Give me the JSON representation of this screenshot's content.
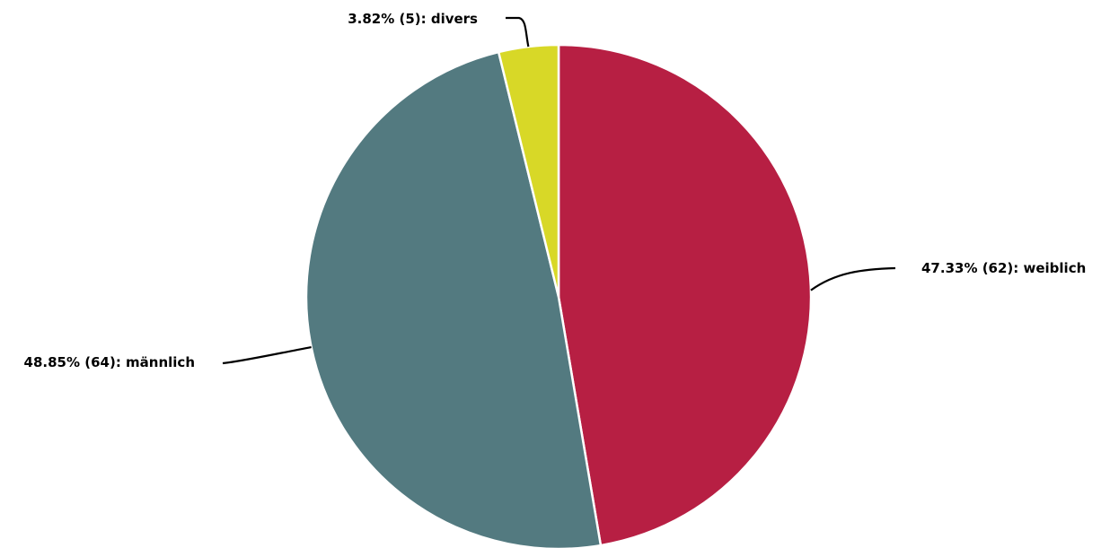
{
  "chart_data": {
    "type": "pie",
    "slices": [
      {
        "label": "weiblich",
        "percent": 47.33,
        "count": 62,
        "color": "#b71f43",
        "display": "47.33% (62): weiblich"
      },
      {
        "label": "männlich",
        "percent": 48.85,
        "count": 64,
        "color": "#537a80",
        "display": "48.85% (64): männlich"
      },
      {
        "label": "divers",
        "percent": 3.82,
        "count": 5,
        "color": "#d8d827",
        "display": "3.82% (5): divers"
      }
    ],
    "start_angle": "12 o'clock",
    "direction": "clockwise",
    "legend": "none"
  }
}
